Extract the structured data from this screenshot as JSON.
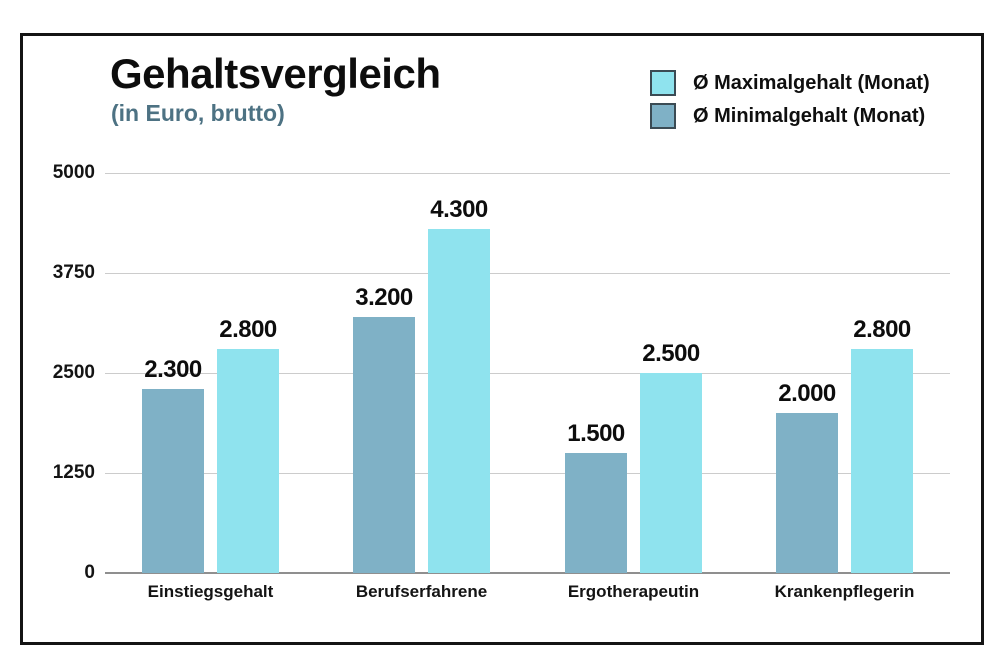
{
  "header": {
    "title": "Gehaltsvergleich",
    "subtitle": "(in Euro, brutto)"
  },
  "legend": {
    "items": [
      {
        "label": "Ø Maximalgehalt (Monat)",
        "color": "#8fe3ee"
      },
      {
        "label": "Ø Minimalgehalt (Monat)",
        "color": "#7fb1c6"
      }
    ]
  },
  "colors": {
    "max_bar": "#8fe3ee",
    "min_bar": "#7fb1c6",
    "swatch_border": "#3b4b54",
    "gridline": "#cccccc",
    "axis_line": "#8f8f8f",
    "subtitle": "#4d7283",
    "frame_border": "#141414",
    "text": "#0d0d0d"
  },
  "chart_data": {
    "type": "bar",
    "title": "Gehaltsvergleich",
    "subtitle": "(in Euro, brutto)",
    "categories": [
      "Einstiegsgehalt",
      "Berufserfahrene",
      "Ergotherapeutin",
      "Krankenpflegerin"
    ],
    "series": [
      {
        "name": "Ø Minimalgehalt (Monat)",
        "color": "#7fb1c6",
        "values": [
          2300,
          3200,
          1500,
          2000
        ],
        "labels": [
          "2.300",
          "3.200",
          "1.500",
          "2.000"
        ]
      },
      {
        "name": "Ø Maximalgehalt (Monat)",
        "color": "#8fe3ee",
        "values": [
          2800,
          4300,
          2500,
          2800
        ],
        "labels": [
          "2.800",
          "4.300",
          "2.500",
          "2.800"
        ]
      }
    ],
    "xlabel": "",
    "ylabel": "",
    "ylim": [
      0,
      5000
    ],
    "yticks": [
      0,
      1250,
      2500,
      3750,
      5000
    ],
    "grid": true,
    "legend_position": "top-right"
  }
}
